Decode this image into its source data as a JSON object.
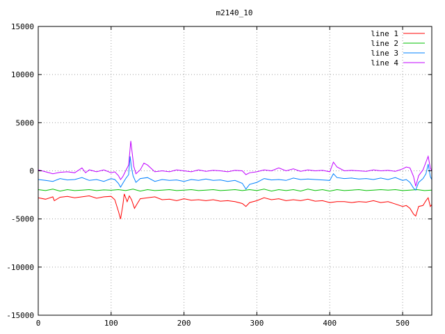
{
  "chart_data": {
    "type": "line",
    "title": "m2140_10",
    "xlabel": "",
    "ylabel": "",
    "xlim": [
      0,
      540
    ],
    "ylim": [
      -15000,
      15000
    ],
    "xticks": [
      0,
      100,
      200,
      300,
      400,
      500
    ],
    "yticks": [
      -15000,
      -10000,
      -5000,
      0,
      5000,
      10000,
      15000
    ],
    "grid": true,
    "legend_position": "top-right",
    "series": [
      {
        "name": "line 1",
        "color": "#ff0000",
        "points": [
          [
            0,
            -2800
          ],
          [
            10,
            -2950
          ],
          [
            20,
            -2700
          ],
          [
            22,
            -3100
          ],
          [
            30,
            -2750
          ],
          [
            40,
            -2650
          ],
          [
            50,
            -2800
          ],
          [
            60,
            -2700
          ],
          [
            70,
            -2600
          ],
          [
            80,
            -2850
          ],
          [
            90,
            -2700
          ],
          [
            100,
            -2650
          ],
          [
            105,
            -3000
          ],
          [
            110,
            -4200
          ],
          [
            113,
            -5000
          ],
          [
            116,
            -3600
          ],
          [
            118,
            -2400
          ],
          [
            122,
            -3200
          ],
          [
            125,
            -2600
          ],
          [
            128,
            -3000
          ],
          [
            132,
            -3900
          ],
          [
            136,
            -3400
          ],
          [
            140,
            -2900
          ],
          [
            150,
            -2800
          ],
          [
            160,
            -2700
          ],
          [
            170,
            -3000
          ],
          [
            180,
            -2950
          ],
          [
            190,
            -3100
          ],
          [
            200,
            -2900
          ],
          [
            210,
            -3050
          ],
          [
            220,
            -3000
          ],
          [
            230,
            -3100
          ],
          [
            240,
            -3000
          ],
          [
            250,
            -3150
          ],
          [
            260,
            -3100
          ],
          [
            270,
            -3200
          ],
          [
            280,
            -3400
          ],
          [
            285,
            -3700
          ],
          [
            290,
            -3300
          ],
          [
            300,
            -3100
          ],
          [
            310,
            -2800
          ],
          [
            320,
            -3000
          ],
          [
            330,
            -2900
          ],
          [
            340,
            -3100
          ],
          [
            350,
            -3000
          ],
          [
            360,
            -3100
          ],
          [
            370,
            -2950
          ],
          [
            380,
            -3150
          ],
          [
            390,
            -3100
          ],
          [
            400,
            -3300
          ],
          [
            410,
            -3200
          ],
          [
            420,
            -3200
          ],
          [
            430,
            -3300
          ],
          [
            440,
            -3200
          ],
          [
            450,
            -3250
          ],
          [
            460,
            -3100
          ],
          [
            470,
            -3300
          ],
          [
            480,
            -3200
          ],
          [
            490,
            -3450
          ],
          [
            500,
            -3700
          ],
          [
            505,
            -3600
          ],
          [
            510,
            -3900
          ],
          [
            515,
            -4500
          ],
          [
            518,
            -4700
          ],
          [
            522,
            -3700
          ],
          [
            528,
            -3600
          ],
          [
            532,
            -3100
          ],
          [
            535,
            -2800
          ],
          [
            538,
            -3700
          ],
          [
            540,
            -3500
          ]
        ]
      },
      {
        "name": "line 2",
        "color": "#00c000",
        "points": [
          [
            0,
            -1950
          ],
          [
            10,
            -2050
          ],
          [
            20,
            -1900
          ],
          [
            30,
            -2100
          ],
          [
            40,
            -1950
          ],
          [
            50,
            -2050
          ],
          [
            60,
            -2000
          ],
          [
            70,
            -1950
          ],
          [
            80,
            -2050
          ],
          [
            90,
            -1980
          ],
          [
            100,
            -2020
          ],
          [
            110,
            -1950
          ],
          [
            120,
            -2050
          ],
          [
            130,
            -1900
          ],
          [
            140,
            -2100
          ],
          [
            150,
            -1950
          ],
          [
            160,
            -2050
          ],
          [
            170,
            -2000
          ],
          [
            180,
            -1950
          ],
          [
            190,
            -2050
          ],
          [
            200,
            -2000
          ],
          [
            210,
            -1950
          ],
          [
            220,
            -2050
          ],
          [
            230,
            -2000
          ],
          [
            240,
            -1950
          ],
          [
            250,
            -2050
          ],
          [
            260,
            -2000
          ],
          [
            270,
            -1950
          ],
          [
            280,
            -2050
          ],
          [
            290,
            -1950
          ],
          [
            300,
            -2050
          ],
          [
            310,
            -1900
          ],
          [
            320,
            -2100
          ],
          [
            330,
            -1950
          ],
          [
            340,
            -2050
          ],
          [
            350,
            -1950
          ],
          [
            360,
            -2100
          ],
          [
            370,
            -1900
          ],
          [
            380,
            -2050
          ],
          [
            390,
            -1950
          ],
          [
            400,
            -2100
          ],
          [
            410,
            -1950
          ],
          [
            420,
            -2050
          ],
          [
            430,
            -2000
          ],
          [
            440,
            -1950
          ],
          [
            450,
            -2050
          ],
          [
            460,
            -2000
          ],
          [
            470,
            -1950
          ],
          [
            480,
            -2000
          ],
          [
            490,
            -1950
          ],
          [
            500,
            -2050
          ],
          [
            510,
            -2000
          ],
          [
            520,
            -1950
          ],
          [
            530,
            -2050
          ],
          [
            540,
            -2000
          ]
        ]
      },
      {
        "name": "line 3",
        "color": "#0080ff",
        "points": [
          [
            0,
            -900
          ],
          [
            10,
            -1000
          ],
          [
            20,
            -1100
          ],
          [
            30,
            -800
          ],
          [
            40,
            -950
          ],
          [
            50,
            -900
          ],
          [
            60,
            -700
          ],
          [
            70,
            -1000
          ],
          [
            80,
            -900
          ],
          [
            90,
            -1100
          ],
          [
            100,
            -800
          ],
          [
            105,
            -900
          ],
          [
            110,
            -1300
          ],
          [
            113,
            -1700
          ],
          [
            116,
            -1300
          ],
          [
            120,
            -800
          ],
          [
            124,
            -400
          ],
          [
            126,
            1500
          ],
          [
            128,
            300
          ],
          [
            130,
            -500
          ],
          [
            134,
            -1200
          ],
          [
            140,
            -800
          ],
          [
            150,
            -700
          ],
          [
            160,
            -1100
          ],
          [
            170,
            -900
          ],
          [
            180,
            -1000
          ],
          [
            190,
            -950
          ],
          [
            200,
            -1100
          ],
          [
            210,
            -900
          ],
          [
            220,
            -1000
          ],
          [
            230,
            -850
          ],
          [
            240,
            -1000
          ],
          [
            250,
            -950
          ],
          [
            260,
            -1100
          ],
          [
            270,
            -1000
          ],
          [
            280,
            -1300
          ],
          [
            285,
            -1900
          ],
          [
            290,
            -1400
          ],
          [
            300,
            -1200
          ],
          [
            310,
            -800
          ],
          [
            320,
            -950
          ],
          [
            330,
            -900
          ],
          [
            340,
            -1000
          ],
          [
            350,
            -750
          ],
          [
            360,
            -900
          ],
          [
            370,
            -850
          ],
          [
            380,
            -900
          ],
          [
            390,
            -950
          ],
          [
            400,
            -1000
          ],
          [
            405,
            -300
          ],
          [
            410,
            -700
          ],
          [
            420,
            -800
          ],
          [
            430,
            -750
          ],
          [
            440,
            -850
          ],
          [
            450,
            -800
          ],
          [
            460,
            -900
          ],
          [
            470,
            -750
          ],
          [
            480,
            -900
          ],
          [
            490,
            -700
          ],
          [
            500,
            -1000
          ],
          [
            505,
            -900
          ],
          [
            510,
            -1200
          ],
          [
            515,
            -1800
          ],
          [
            518,
            -2000
          ],
          [
            522,
            -1200
          ],
          [
            528,
            -800
          ],
          [
            532,
            -300
          ],
          [
            535,
            700
          ],
          [
            538,
            -600
          ],
          [
            540,
            -900
          ]
        ]
      },
      {
        "name": "line 4",
        "color": "#c000ff",
        "points": [
          [
            0,
            100
          ],
          [
            10,
            -100
          ],
          [
            20,
            -300
          ],
          [
            30,
            -150
          ],
          [
            40,
            -100
          ],
          [
            50,
            -200
          ],
          [
            60,
            300
          ],
          [
            65,
            -200
          ],
          [
            70,
            100
          ],
          [
            80,
            -100
          ],
          [
            90,
            100
          ],
          [
            100,
            -200
          ],
          [
            105,
            -100
          ],
          [
            110,
            -500
          ],
          [
            113,
            -900
          ],
          [
            116,
            -600
          ],
          [
            120,
            0
          ],
          [
            124,
            600
          ],
          [
            127,
            3100
          ],
          [
            129,
            1800
          ],
          [
            131,
            500
          ],
          [
            134,
            -300
          ],
          [
            140,
            100
          ],
          [
            145,
            800
          ],
          [
            150,
            600
          ],
          [
            160,
            -100
          ],
          [
            170,
            0
          ],
          [
            180,
            -100
          ],
          [
            190,
            100
          ],
          [
            200,
            0
          ],
          [
            210,
            -100
          ],
          [
            220,
            100
          ],
          [
            230,
            -50
          ],
          [
            240,
            50
          ],
          [
            250,
            0
          ],
          [
            260,
            -100
          ],
          [
            270,
            50
          ],
          [
            280,
            0
          ],
          [
            285,
            -400
          ],
          [
            290,
            -200
          ],
          [
            300,
            -100
          ],
          [
            310,
            100
          ],
          [
            320,
            0
          ],
          [
            330,
            300
          ],
          [
            340,
            0
          ],
          [
            350,
            200
          ],
          [
            360,
            -50
          ],
          [
            370,
            100
          ],
          [
            380,
            0
          ],
          [
            390,
            50
          ],
          [
            400,
            -100
          ],
          [
            405,
            900
          ],
          [
            410,
            400
          ],
          [
            420,
            0
          ],
          [
            430,
            50
          ],
          [
            440,
            0
          ],
          [
            450,
            -50
          ],
          [
            460,
            100
          ],
          [
            470,
            0
          ],
          [
            480,
            50
          ],
          [
            490,
            -50
          ],
          [
            500,
            200
          ],
          [
            505,
            400
          ],
          [
            510,
            300
          ],
          [
            515,
            -600
          ],
          [
            518,
            -1600
          ],
          [
            522,
            -500
          ],
          [
            528,
            100
          ],
          [
            532,
            900
          ],
          [
            535,
            1500
          ],
          [
            538,
            300
          ],
          [
            540,
            0
          ]
        ]
      }
    ]
  }
}
